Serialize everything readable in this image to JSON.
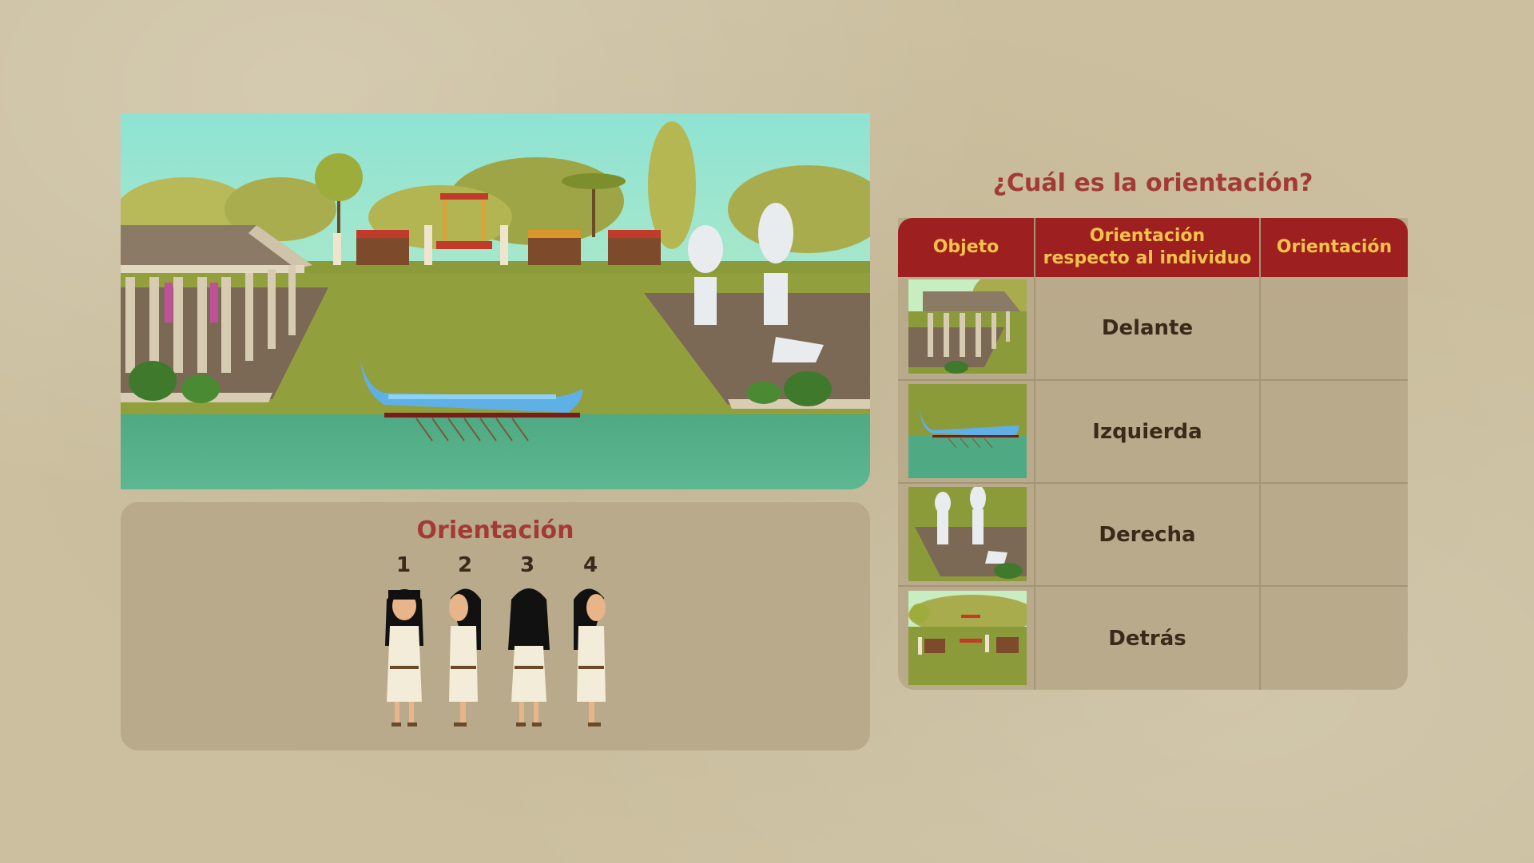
{
  "question": "¿Cuál es la orientación?",
  "orientation_panel": {
    "title": "Orientación",
    "numbers": [
      "1",
      "2",
      "3",
      "4"
    ]
  },
  "table": {
    "headers": [
      "Objeto",
      "Orientación respecto al individuo",
      "Orientación"
    ],
    "header_lines": [
      [
        "Objeto"
      ],
      [
        "Orientación",
        "respecto al individuo"
      ],
      [
        "Orientación"
      ]
    ],
    "rows": [
      {
        "object": "temple-thumbnail",
        "relative": "Delante",
        "orientation": ""
      },
      {
        "object": "boat-thumbnail",
        "relative": "Izquierda",
        "orientation": ""
      },
      {
        "object": "statues-thumbnail",
        "relative": "Derecha",
        "orientation": ""
      },
      {
        "object": "market-thumbnail",
        "relative": "Detrás",
        "orientation": ""
      }
    ]
  },
  "colors": {
    "accent_red": "#a23a36",
    "header_red": "#9e1f1f",
    "header_text": "#f4c24a",
    "panel": "#b9aa8c"
  }
}
